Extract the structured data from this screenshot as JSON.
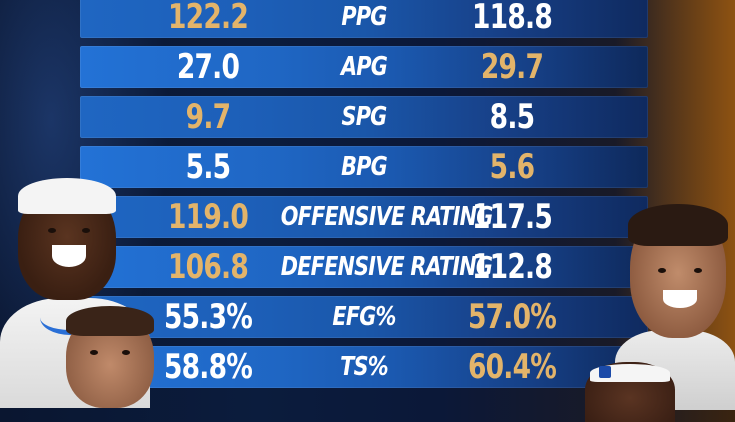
{
  "stats": [
    {
      "label": "PPG",
      "left": "122.2",
      "right": "118.8",
      "left_color": "gold",
      "right_color": "white"
    },
    {
      "label": "APG",
      "left": "27.0",
      "right": "29.7",
      "left_color": "white",
      "right_color": "gold"
    },
    {
      "label": "SPG",
      "left": "9.7",
      "right": "8.5",
      "left_color": "gold",
      "right_color": "white"
    },
    {
      "label": "BPG",
      "left": "5.5",
      "right": "5.6",
      "left_color": "white",
      "right_color": "gold"
    },
    {
      "label": "OFFENSIVE RATING",
      "left": "119.0",
      "right": "117.5",
      "left_color": "gold",
      "right_color": "white"
    },
    {
      "label": "DEFENSIVE RATING",
      "left": "106.8",
      "right": "112.8",
      "left_color": "gold",
      "right_color": "white"
    },
    {
      "label": "EFG%",
      "left": "55.3%",
      "right": "57.0%",
      "left_color": "white",
      "right_color": "gold"
    },
    {
      "label": "TS%",
      "left": "58.8%",
      "right": "60.4%",
      "left_color": "white",
      "right_color": "gold"
    }
  ],
  "colors": {
    "gold": "#e3b46a",
    "white": "#ffffff"
  }
}
